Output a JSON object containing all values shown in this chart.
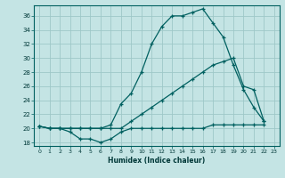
{
  "xlabel": "Humidex (Indice chaleur)",
  "bg_color": "#c4e4e4",
  "grid_color": "#9ec8c8",
  "line_color": "#006060",
  "xlim": [
    -0.5,
    23.5
  ],
  "ylim": [
    17.5,
    37.5
  ],
  "yticks": [
    18,
    20,
    22,
    24,
    26,
    28,
    30,
    32,
    34,
    36
  ],
  "xticks": [
    0,
    1,
    2,
    3,
    4,
    5,
    6,
    7,
    8,
    9,
    10,
    11,
    12,
    13,
    14,
    15,
    16,
    17,
    18,
    19,
    20,
    21,
    22,
    23
  ],
  "curve1_x": [
    0,
    1,
    2,
    3,
    4,
    5,
    6,
    7,
    8,
    9,
    10,
    11,
    12,
    13,
    14,
    15,
    16,
    17,
    18,
    19,
    20,
    21,
    22
  ],
  "curve1_y": [
    20.3,
    20,
    20,
    19.5,
    18.5,
    18.5,
    18,
    18.5,
    19.5,
    20,
    20,
    20,
    20,
    20,
    20,
    20,
    20,
    20.5,
    20.5,
    20.5,
    20.5,
    20.5,
    20.5
  ],
  "curve2_x": [
    0,
    1,
    2,
    3,
    4,
    5,
    6,
    7,
    8,
    9,
    10,
    11,
    12,
    13,
    14,
    15,
    16,
    17,
    18,
    19,
    20,
    21,
    22
  ],
  "curve2_y": [
    20.3,
    20,
    20,
    20,
    20,
    20,
    20,
    20.5,
    23.5,
    25,
    28,
    32,
    34.5,
    36,
    36,
    36.5,
    37,
    35,
    33,
    29,
    25.5,
    23,
    21
  ],
  "curve3_x": [
    0,
    1,
    2,
    3,
    4,
    5,
    6,
    7,
    8,
    9,
    10,
    11,
    12,
    13,
    14,
    15,
    16,
    17,
    18,
    19,
    20,
    21,
    22
  ],
  "curve3_y": [
    20.3,
    20,
    20,
    20,
    20,
    20,
    20,
    20,
    20,
    21,
    22,
    23,
    24,
    25,
    26,
    27,
    28,
    29,
    29.5,
    30,
    26,
    25.5,
    21
  ]
}
